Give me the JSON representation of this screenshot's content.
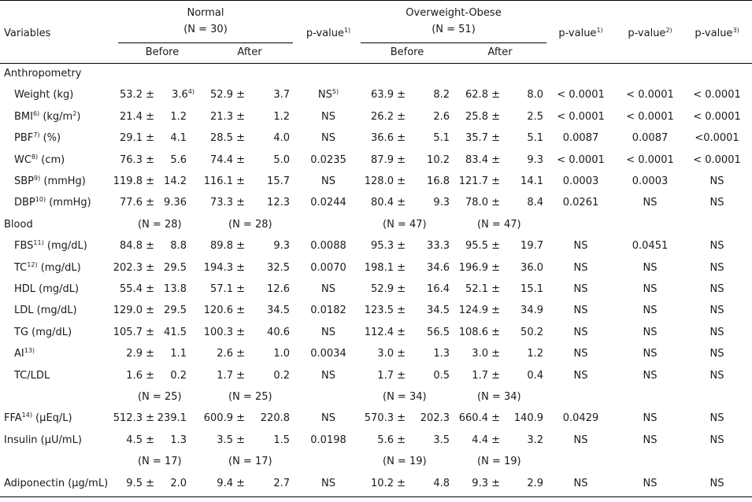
{
  "header": {
    "variables": "Variables",
    "normal_title": "Normal",
    "normal_n": "(N = 30)",
    "ob_title": "Overweight-Obese",
    "ob_n": "(N = 51)",
    "pvalue": "p-value",
    "pvalue_sup": [
      "1)",
      "1)",
      "2)",
      "3)"
    ],
    "before": "Before",
    "after": "After"
  },
  "rows": [
    {
      "kind": "section",
      "label": "Anthropometry"
    },
    {
      "kind": "data",
      "label": "Weight (kg)",
      "nb_m": "53.2 ±",
      "nb_s": "3.6",
      "nb_s_sup": "4)",
      "na_m": "52.9 ±",
      "na_s": "3.7",
      "p1": "NS",
      "p1_sup": "5)",
      "ob_m": "63.9 ±",
      "ob_s": "8.2",
      "oa_m": "62.8 ±",
      "oa_s": "8.0",
      "p1b": "< 0.0001",
      "p2": "< 0.0001",
      "p3": "< 0.0001"
    },
    {
      "kind": "data",
      "label": "BMI",
      "label_sup": "6)",
      "label_tail": " (kg/m",
      "label_sup2": "2",
      "label_end": ")",
      "nb_m": "21.4 ±",
      "nb_s": "1.2",
      "na_m": "21.3 ±",
      "na_s": "1.2",
      "p1": "NS",
      "ob_m": "26.2 ±",
      "ob_s": "2.6",
      "oa_m": "25.8 ±",
      "oa_s": "2.5",
      "p1b": "< 0.0001",
      "p2": "< 0.0001",
      "p3": "< 0.0001"
    },
    {
      "kind": "data",
      "label": "PBF",
      "label_sup": "7)",
      "label_tail": " (%)",
      "nb_m": "29.1 ±",
      "nb_s": "4.1",
      "na_m": "28.5 ±",
      "na_s": "4.0",
      "p1": "NS",
      "ob_m": "36.6 ±",
      "ob_s": "5.1",
      "oa_m": "35.7 ±",
      "oa_s": "5.1",
      "p1b": "0.0087",
      "p2": "0.0087",
      "p3": "<0.0001"
    },
    {
      "kind": "data",
      "label": "WC",
      "label_sup": "8)",
      "label_tail": " (cm)",
      "nb_m": "76.3 ±",
      "nb_s": "5.6",
      "na_m": "74.4 ±",
      "na_s": "5.0",
      "p1": "0.0235",
      "ob_m": "87.9 ±",
      "ob_s": "10.2",
      "oa_m": "83.4 ±",
      "oa_s": "9.3",
      "p1b": "< 0.0001",
      "p2": "< 0.0001",
      "p3": "< 0.0001"
    },
    {
      "kind": "data",
      "label": "SBP",
      "label_sup": "9)",
      "label_tail": " (mmHg)",
      "nb_m": "119.8 ±",
      "nb_s": "14.2",
      "na_m": "116.1 ±",
      "na_s": "15.7",
      "p1": "NS",
      "ob_m": "128.0 ±",
      "ob_s": "16.8",
      "oa_m": "121.7 ±",
      "oa_s": "14.1",
      "p1b": "0.0003",
      "p2": "0.0003",
      "p3": "NS"
    },
    {
      "kind": "data",
      "label": "DBP",
      "label_sup": "10)",
      "label_tail": " (mmHg)",
      "nb_m": "77.6 ±",
      "nb_s": "9.36",
      "na_m": "73.3 ±",
      "na_s": "12.3",
      "p1": "0.0244",
      "ob_m": "80.4 ±",
      "ob_s": "9.3",
      "oa_m": "78.0 ±",
      "oa_s": "8.4",
      "p1b": "0.0261",
      "p2": "NS",
      "p3": "NS"
    },
    {
      "kind": "section",
      "label": "Blood",
      "n_nb": "(N = 28)",
      "n_na": "(N = 28)",
      "n_ob": "(N = 47)",
      "n_oa": "(N = 47)"
    },
    {
      "kind": "data",
      "label": "FBS",
      "label_sup": "11)",
      "label_tail": " (mg/dL)",
      "nb_m": "84.8 ±",
      "nb_s": "8.8",
      "na_m": "89.8 ±",
      "na_s": "9.3",
      "p1": "0.0088",
      "ob_m": "95.3 ±",
      "ob_s": "33.3",
      "oa_m": "95.5 ±",
      "oa_s": "19.7",
      "p1b": "NS",
      "p2": "0.0451",
      "p3": "NS"
    },
    {
      "kind": "data",
      "label": "TC",
      "label_sup": "12)",
      "label_tail": " (mg/dL)",
      "nb_m": "202.3 ±",
      "nb_s": "29.5",
      "na_m": "194.3 ±",
      "na_s": "32.5",
      "p1": "0.0070",
      "ob_m": "198.1 ±",
      "ob_s": "34.6",
      "oa_m": "196.9 ±",
      "oa_s": "36.0",
      "p1b": "NS",
      "p2": "NS",
      "p3": "NS"
    },
    {
      "kind": "data",
      "label": "HDL (mg/dL)",
      "nb_m": "55.4 ±",
      "nb_s": "13.8",
      "na_m": "57.1 ±",
      "na_s": "12.6",
      "p1": "NS",
      "ob_m": "52.9 ±",
      "ob_s": "16.4",
      "oa_m": "52.1 ±",
      "oa_s": "15.1",
      "p1b": "NS",
      "p2": "NS",
      "p3": "NS"
    },
    {
      "kind": "data",
      "label": "LDL (mg/dL)",
      "nb_m": "129.0 ±",
      "nb_s": "29.5",
      "na_m": "120.6 ±",
      "na_s": "34.5",
      "p1": "0.0182",
      "ob_m": "123.5 ±",
      "ob_s": "34.5",
      "oa_m": "124.9 ±",
      "oa_s": "34.9",
      "p1b": "NS",
      "p2": "NS",
      "p3": "NS"
    },
    {
      "kind": "data",
      "label": "TG (mg/dL)",
      "nb_m": "105.7 ±",
      "nb_s": "41.5",
      "na_m": "100.3 ±",
      "na_s": "40.6",
      "p1": "NS",
      "ob_m": "112.4 ±",
      "ob_s": "56.5",
      "oa_m": "108.6 ±",
      "oa_s": "50.2",
      "p1b": "NS",
      "p2": "NS",
      "p3": "NS"
    },
    {
      "kind": "data",
      "label": "AI",
      "label_sup": "13)",
      "nb_m": "2.9 ±",
      "nb_s": "1.1",
      "na_m": "2.6 ±",
      "na_s": "1.0",
      "p1": "0.0034",
      "ob_m": "3.0 ±",
      "ob_s": "1.3",
      "oa_m": "3.0 ±",
      "oa_s": "1.2",
      "p1b": "NS",
      "p2": "NS",
      "p3": "NS"
    },
    {
      "kind": "data",
      "label": "TC/LDL",
      "nb_m": "1.6 ±",
      "nb_s": "0.2",
      "na_m": "1.7 ±",
      "na_s": "0.2",
      "p1": "NS",
      "ob_m": "1.7 ±",
      "ob_s": "0.5",
      "oa_m": "1.7 ±",
      "oa_s": "0.4",
      "p1b": "NS",
      "p2": "NS",
      "p3": "NS"
    },
    {
      "kind": "nrow",
      "n_nb": "(N = 25)",
      "n_na": "(N = 25)",
      "n_ob": "(N = 34)",
      "n_oa": "(N = 34)"
    },
    {
      "kind": "data",
      "flush": true,
      "label": "FFA",
      "label_sup": "14)",
      "label_tail": " (μEq/L)",
      "nb_m": "512.3 ±",
      "nb_s": "239.1",
      "na_m": "600.9 ±",
      "na_s": "220.8",
      "p1": "NS",
      "ob_m": "570.3 ±",
      "ob_s": "202.3",
      "oa_m": "660.4 ±",
      "oa_s": "140.9",
      "p1b": "0.0429",
      "p2": "NS",
      "p3": "NS"
    },
    {
      "kind": "data",
      "flush": true,
      "label": "Insulin (μU/mL)",
      "nb_m": "4.5 ±",
      "nb_s": "1.3",
      "na_m": "3.5 ±",
      "na_s": "1.5",
      "p1": "0.0198",
      "ob_m": "5.6 ±",
      "ob_s": "3.5",
      "oa_m": "4.4 ±",
      "oa_s": "3.2",
      "p1b": "NS",
      "p2": "NS",
      "p3": "NS"
    },
    {
      "kind": "nrow",
      "n_nb": "(N = 17)",
      "n_na": "(N = 17)",
      "n_ob": "(N = 19)",
      "n_oa": "(N = 19)"
    },
    {
      "kind": "data",
      "flush": true,
      "label": "Adiponectin (μg/mL)",
      "nb_m": "9.5 ±",
      "nb_s": "2.0",
      "na_m": "9.4 ±",
      "na_s": "2.7",
      "p1": "NS",
      "ob_m": "10.2 ±",
      "ob_s": "4.8",
      "oa_m": "9.3 ±",
      "oa_s": "2.9",
      "p1b": "NS",
      "p2": "NS",
      "p3": "NS"
    }
  ]
}
